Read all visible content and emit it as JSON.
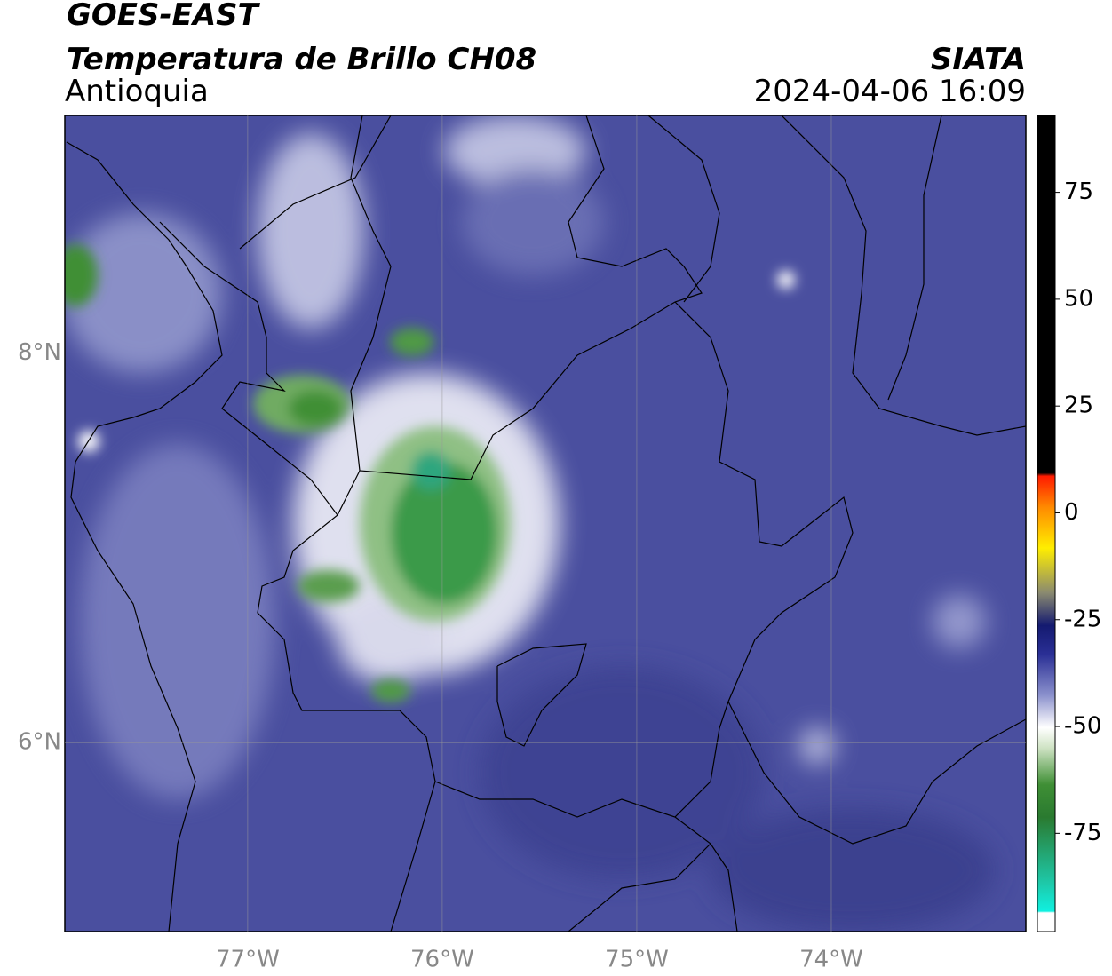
{
  "header": {
    "title": "GOES-EAST",
    "subtitle": "Temperatura de Brillo CH08",
    "region": "Antioquia",
    "source": "SIATA",
    "datetime": "2024-04-06 16:09"
  },
  "map": {
    "xlim": [
      -77.94,
      -73.0
    ],
    "ylim": [
      5.03,
      9.22
    ],
    "xticks": [
      {
        "value": -77,
        "label": "77°W"
      },
      {
        "value": -76,
        "label": "76°W"
      },
      {
        "value": -75,
        "label": "75°W"
      },
      {
        "value": -74,
        "label": "74°W"
      }
    ],
    "yticks": [
      {
        "value": 8,
        "label": "8°N"
      },
      {
        "value": 6,
        "label": "6°N"
      }
    ],
    "grid": true
  },
  "colorbar": {
    "lim": [
      -98,
      93
    ],
    "ticks": [
      75,
      50,
      25,
      0,
      -25,
      -50,
      -75
    ]
  }
}
